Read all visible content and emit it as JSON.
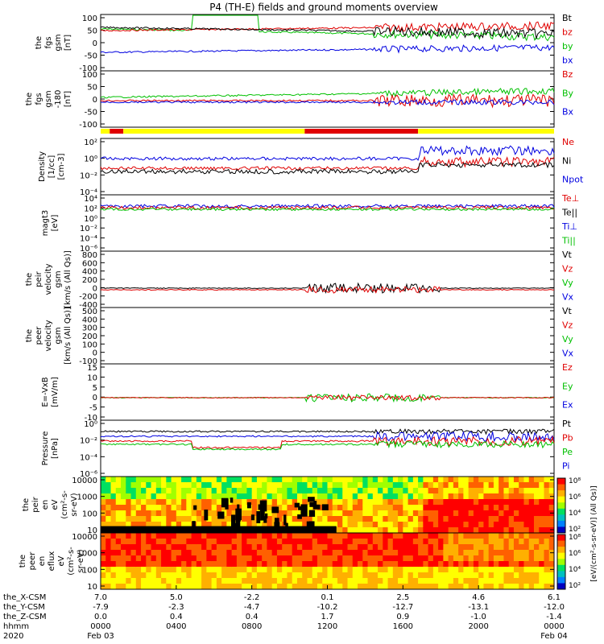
{
  "chart_data": {
    "type": "line",
    "title": "P4 (TH-E) fields and ground moments overview",
    "panels": [
      {
        "id": "fgs",
        "ylabel": [
          "the",
          "fgs",
          "gsm",
          "[nT]"
        ],
        "yticks": [
          "100",
          "50",
          "0",
          "-50",
          "-100"
        ],
        "legend": [
          {
            "name": "Bt",
            "color": "#000000"
          },
          {
            "name": "bz",
            "color": "#e00000"
          },
          {
            "name": "by",
            "color": "#00c000"
          },
          {
            "name": "bx",
            "color": "#0000e0"
          }
        ]
      },
      {
        "id": "fgs2",
        "ylabel": [
          "the",
          "fgs",
          "gsm",
          "-180",
          "[nT]"
        ],
        "yticks": [
          "100",
          "50",
          "0",
          "-50",
          "-100"
        ],
        "legend": [
          {
            "name": "Bz",
            "color": "#e00000"
          },
          {
            "name": "By",
            "color": "#00c000"
          },
          {
            "name": "Bx",
            "color": "#0000e0"
          }
        ]
      },
      {
        "id": "density",
        "ylabel": [
          "Density",
          "[1/cc]",
          "[cm-3]"
        ],
        "yticks": [
          "10²",
          "10⁰",
          "10⁻²",
          "10⁻⁴"
        ],
        "legend": [
          {
            "name": "Ne",
            "color": "#e00000"
          },
          {
            "name": "Ni",
            "color": "#000000"
          },
          {
            "name": "Npot",
            "color": "#0000e0"
          }
        ]
      },
      {
        "id": "temp",
        "ylabel": [
          "magt3",
          "[eV]"
        ],
        "yticks": [
          "10⁴",
          "10²",
          "10⁰",
          "10⁻²",
          "10⁻⁴",
          "10⁻⁶"
        ],
        "legend": [
          {
            "name": "Te⊥",
            "color": "#e00000"
          },
          {
            "name": "Te||",
            "color": "#000000"
          },
          {
            "name": "Ti⊥",
            "color": "#0000e0"
          },
          {
            "name": "Ti||",
            "color": "#00c000"
          }
        ]
      },
      {
        "id": "peir_vel",
        "ylabel": [
          "the",
          "peir",
          "velocity",
          "gsm",
          "[km/s (All Qs)]"
        ],
        "yticks": [
          "800",
          "600",
          "400",
          "200",
          "0",
          "-200",
          "-400"
        ],
        "legend": [
          {
            "name": "Vt",
            "color": "#000000"
          },
          {
            "name": "Vz",
            "color": "#e00000"
          },
          {
            "name": "Vy",
            "color": "#00c000"
          },
          {
            "name": "Vx",
            "color": "#0000e0"
          }
        ]
      },
      {
        "id": "peer_vel",
        "ylabel": [
          "the",
          "peer",
          "velocity",
          "gsm",
          "[km/s (All Qs)]"
        ],
        "yticks": [
          "500",
          "400",
          "300",
          "200",
          "100",
          "0",
          "-100"
        ],
        "legend": [
          {
            "name": "Vt",
            "color": "#000000"
          },
          {
            "name": "Vz",
            "color": "#e00000"
          },
          {
            "name": "Vy",
            "color": "#00c000"
          },
          {
            "name": "Vx",
            "color": "#0000e0"
          }
        ]
      },
      {
        "id": "efield",
        "ylabel": [
          "E=-VxB",
          "[mV/m]"
        ],
        "yticks": [
          "15",
          "10",
          "5",
          "0",
          "-5",
          "-10"
        ],
        "legend": [
          {
            "name": "Ez",
            "color": "#e00000"
          },
          {
            "name": "Ey",
            "color": "#00c000"
          },
          {
            "name": "Ex",
            "color": "#0000e0"
          }
        ]
      },
      {
        "id": "pressure",
        "ylabel": [
          "Pressure",
          "[nPa]"
        ],
        "yticks": [
          "10⁰",
          "10⁻²",
          "10⁻⁴",
          "10⁻⁶"
        ],
        "legend": [
          {
            "name": "Pt",
            "color": "#000000"
          },
          {
            "name": "Pb",
            "color": "#e00000"
          },
          {
            "name": "Pe",
            "color": "#00c000"
          },
          {
            "name": "Pi",
            "color": "#0000e0"
          }
        ]
      },
      {
        "id": "peir_spec",
        "ylabel": [
          "the",
          "peir",
          "en",
          "eV",
          "(cm²-s-",
          "sr-eV)"
        ],
        "yticks": [
          "10000",
          "1000",
          "100",
          "10"
        ]
      },
      {
        "id": "peer_spec",
        "ylabel": [
          "the",
          "peer",
          "en",
          "eflux",
          "eV",
          "(cm²-s-",
          "sr-eV)"
        ],
        "yticks": [
          "10000",
          "1000",
          "100",
          "10"
        ]
      }
    ],
    "colorbar": {
      "label": "[eV/(cm²-s-sr-eV)] (All Qs)]",
      "ticks1": [
        "10⁸",
        "10⁶",
        "10⁴",
        "10²"
      ],
      "ticks2": [
        "10⁸",
        "10⁶",
        "10⁴",
        "10²"
      ]
    },
    "xaxis": {
      "row_labels": [
        "the_X-CSM",
        "the_Y-CSM",
        "the_Z-CSM",
        "hhmm",
        "2020"
      ],
      "ticks": [
        {
          "x": "7.0",
          "y": "-7.9",
          "z": "0.0",
          "hhmm": "0000",
          "date": "Feb 03"
        },
        {
          "x": "5.0",
          "y": "-2.3",
          "z": "0.4",
          "hhmm": "0400",
          "date": ""
        },
        {
          "x": "-2.2",
          "y": "-4.7",
          "z": "0.4",
          "hhmm": "0800",
          "date": ""
        },
        {
          "x": "0.1",
          "y": "-10.2",
          "z": "1.7",
          "hhmm": "1200",
          "date": ""
        },
        {
          "x": "2.5",
          "y": "-12.7",
          "z": "0.9",
          "hhmm": "1600",
          "date": ""
        },
        {
          "x": "4.6",
          "y": "-13.1",
          "z": "-1.0",
          "hhmm": "2000",
          "date": ""
        },
        {
          "x": "6.1",
          "y": "-12.0",
          "z": "-1.4",
          "hhmm": "0000",
          "date": "Feb 04"
        }
      ]
    },
    "mode_bar": [
      {
        "start": 0.0,
        "end": 0.02,
        "color": "#ffff00"
      },
      {
        "start": 0.02,
        "end": 0.05,
        "color": "#e00000"
      },
      {
        "start": 0.05,
        "end": 0.45,
        "color": "#ffff00"
      },
      {
        "start": 0.45,
        "end": 0.7,
        "color": "#e00000"
      },
      {
        "start": 0.7,
        "end": 1.0,
        "color": "#ffff00"
      }
    ]
  }
}
